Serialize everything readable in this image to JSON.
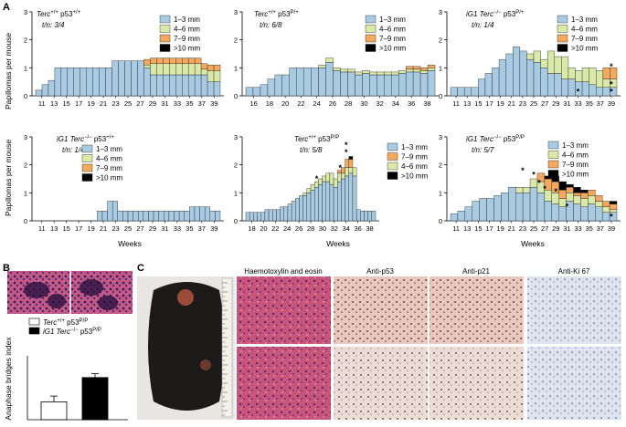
{
  "panel_labels": [
    "A",
    "B",
    "C"
  ],
  "colors": {
    "c13": "#a8cbe3",
    "c46": "#dbe9a8",
    "c79": "#f4a95e",
    "c10": "#000000",
    "edge": "#222222"
  },
  "axis_common": {
    "ylabel": "Papillomas per mouse",
    "xlabel": "Weeks"
  },
  "chart_data": [
    {
      "type": "bar",
      "title_pre": "Terc",
      "title_sup1": "+/+",
      "title_mid": " p53",
      "title_sup2": "+/+",
      "tn": "t/n: 3/4",
      "ylim": [
        0,
        3
      ],
      "yticks": [
        "0",
        "1",
        "2",
        "3"
      ],
      "xticks": [
        "11",
        "13",
        "15",
        "17",
        "19",
        "21",
        "23",
        "25",
        "27",
        "29",
        "31",
        "33",
        "35",
        "37",
        "39"
      ],
      "legend": [
        "1–3 mm",
        "4–6 mm",
        "7–9 mm",
        ">10 mm"
      ],
      "legend_keys": [
        "c13",
        "c46",
        "c79",
        "c10"
      ],
      "stack_keys": [
        "c13",
        "c46",
        "c79",
        "c10"
      ],
      "bars": [
        [
          0.2
        ],
        [
          0.4
        ],
        [
          0.55
        ],
        [
          1.0
        ],
        [
          1.0
        ],
        [
          1.0
        ],
        [
          1.0
        ],
        [
          1.0
        ],
        [
          1.0
        ],
        [
          1.0
        ],
        [
          1.0
        ],
        [
          1.0
        ],
        [
          1.25
        ],
        [
          1.25
        ],
        [
          1.25
        ],
        [
          1.25
        ],
        [
          1.25
        ],
        [
          1.0,
          0.1,
          0.2
        ],
        [
          0.75,
          0.4,
          0.2
        ],
        [
          0.75,
          0.4,
          0.2
        ],
        [
          0.75,
          0.4,
          0.2
        ],
        [
          0.75,
          0.4,
          0.2
        ],
        [
          0.75,
          0.4,
          0.2
        ],
        [
          0.75,
          0.4,
          0.2
        ],
        [
          0.75,
          0.4,
          0.2
        ],
        [
          0.75,
          0.4,
          0.2
        ],
        [
          0.75,
          0.2,
          0.2
        ],
        [
          0.5,
          0.4,
          0.2
        ],
        [
          0.5,
          0.4,
          0.2
        ]
      ],
      "stars": []
    },
    {
      "type": "bar",
      "title_pre": "Terc",
      "title_sup1": "+/+",
      "title_mid": " p53",
      "title_sup2": "P/+",
      "tn": "t/n: 6/8",
      "ylim": [
        0,
        3
      ],
      "yticks": [
        "0",
        "1",
        "2",
        "3"
      ],
      "xticks": [
        "16",
        "18",
        "20",
        "22",
        "24",
        "26",
        "28",
        "30",
        "32",
        "34",
        "36",
        "38"
      ],
      "legend": [
        "1–3 mm",
        "4–6 mm",
        "7–9 mm",
        ">10 mm"
      ],
      "legend_keys": [
        "c13",
        "c46",
        "c79",
        "c10"
      ],
      "stack_keys": [
        "c13",
        "c46",
        "c79",
        "c10"
      ],
      "bars": [
        [
          0.3
        ],
        [
          0.3
        ],
        [
          0.4
        ],
        [
          0.6
        ],
        [
          0.75
        ],
        [
          0.75
        ],
        [
          1.0
        ],
        [
          1.0
        ],
        [
          1.0
        ],
        [
          1.0
        ],
        [
          1.0,
          0.1
        ],
        [
          1.2,
          0.15
        ],
        [
          0.9,
          0.1
        ],
        [
          0.85,
          0.1
        ],
        [
          0.85,
          0.1
        ],
        [
          0.75,
          0.1
        ],
        [
          0.8,
          0.1
        ],
        [
          0.75,
          0.1
        ],
        [
          0.75,
          0.1
        ],
        [
          0.75,
          0.1
        ],
        [
          0.75,
          0.1
        ],
        [
          0.8,
          0.1
        ],
        [
          0.85,
          0.1,
          0.1
        ],
        [
          0.85,
          0.1,
          0.1
        ],
        [
          0.8,
          0.1,
          0.1
        ],
        [
          0.9,
          0.1,
          0.1
        ]
      ],
      "stars": []
    },
    {
      "type": "bar",
      "title_pre": "iG1 Terc",
      "title_sup1": "−/−",
      "title_mid": " p53",
      "title_sup2": "P/+",
      "tn": "t/n: 1/4",
      "ylim": [
        0,
        3
      ],
      "yticks": [
        "0",
        "1",
        "2",
        "3"
      ],
      "xticks": [
        "11",
        "13",
        "15",
        "17",
        "19",
        "21",
        "23",
        "25",
        "27",
        "29",
        "31",
        "33",
        "35",
        "37",
        "39"
      ],
      "legend": [
        "1–3 mm",
        "4–6 mm",
        "7–9 mm",
        ">10 mm"
      ],
      "legend_keys": [
        "c13",
        "c46",
        "c79",
        "c10"
      ],
      "stack_keys": [
        "c13",
        "c46",
        "c79",
        "c10"
      ],
      "bars": [
        [
          0.3
        ],
        [
          0.3
        ],
        [
          0.3
        ],
        [
          0.3
        ],
        [
          0.6
        ],
        [
          0.8
        ],
        [
          1.0
        ],
        [
          1.3
        ],
        [
          1.5
        ],
        [
          1.75
        ],
        [
          1.6
        ],
        [
          1.3,
          0.2
        ],
        [
          1.2,
          0.4
        ],
        [
          1.0,
          0.3
        ],
        [
          0.8,
          0.8
        ],
        [
          0.8,
          0.6
        ],
        [
          0.6,
          0.8
        ],
        [
          0.6,
          0.4
        ],
        [
          0.5,
          0.4
        ],
        [
          0.5,
          0.5
        ],
        [
          0.4,
          0.6
        ],
        [
          0.3,
          0.6
        ],
        [
          0.3,
          0.3,
          0.4
        ],
        [
          0.3,
          0.3,
          0.4
        ]
      ],
      "stars": [
        {
          "x": 39,
          "y": 0.95,
          "n": 1
        },
        {
          "x": 33,
          "y": 0.05,
          "n": 1
        },
        {
          "x": 39,
          "y": 0.05,
          "n": 2
        }
      ]
    },
    {
      "type": "bar",
      "title_pre": "iG1 Terc",
      "title_sup1": "−/−",
      "title_mid": " p53",
      "title_sup2": "+/+",
      "tn": "t/n: 1/4",
      "ylim": [
        0,
        3
      ],
      "yticks": [
        "0",
        "1",
        "2",
        "3"
      ],
      "xticks": [
        "11",
        "13",
        "15",
        "17",
        "19",
        "21",
        "23",
        "25",
        "27",
        "29",
        "31",
        "33",
        "35",
        "37",
        "39"
      ],
      "legend": [
        "1–3 mm",
        "4–6 mm",
        "7–9 mm",
        ">10 mm"
      ],
      "legend_keys": [
        "c13",
        "c46",
        "c79",
        "c10"
      ],
      "stack_keys": [
        "c13",
        "c46",
        "c79",
        "c10"
      ],
      "bars": [
        [
          0
        ],
        [
          0
        ],
        [
          0
        ],
        [
          0
        ],
        [
          0
        ],
        [
          0
        ],
        [
          0
        ],
        [
          0
        ],
        [
          0
        ],
        [
          0
        ],
        [
          0
        ],
        [
          0
        ],
        [
          0.35
        ],
        [
          0.35
        ],
        [
          0.7
        ],
        [
          0.7
        ],
        [
          0.35
        ],
        [
          0.35
        ],
        [
          0.35
        ],
        [
          0.35
        ],
        [
          0.35
        ],
        [
          0.35
        ],
        [
          0.35
        ],
        [
          0.35
        ],
        [
          0.35
        ],
        [
          0.35
        ],
        [
          0.35
        ],
        [
          0.35
        ],
        [
          0.35
        ],
        [
          0.35
        ],
        [
          0.5
        ],
        [
          0.5
        ],
        [
          0.5
        ],
        [
          0.5
        ],
        [
          0.35
        ],
        [
          0.35
        ]
      ],
      "stars": []
    },
    {
      "type": "bar",
      "title_pre": "Terc",
      "title_sup1": "+/+",
      "title_mid": " p53",
      "title_sup2": "P/P",
      "tn": "t/n: 5/8",
      "ylim": [
        0,
        3
      ],
      "yticks": [
        "0",
        "1",
        "2",
        "3"
      ],
      "xticks": [
        "18",
        "20",
        "22",
        "24",
        "26",
        "28",
        "30",
        "32",
        "34",
        "36",
        "38"
      ],
      "legend": [
        "1–3 mm",
        "7–9 mm",
        "4–6 mm",
        ">10 mm"
      ],
      "legend_keys": [
        "c13",
        "c79",
        "c46",
        "c10"
      ],
      "stack_keys": [
        "c13",
        "c46",
        "c79",
        "c10"
      ],
      "bars": [
        [
          0.3
        ],
        [
          0.3
        ],
        [
          0.3
        ],
        [
          0.3
        ],
        [
          0.3
        ],
        [
          0.4
        ],
        [
          0.4
        ],
        [
          0.4
        ],
        [
          0.4
        ],
        [
          0.5
        ],
        [
          0.5
        ],
        [
          0.6
        ],
        [
          0.7
        ],
        [
          0.8
        ],
        [
          0.9
        ],
        [
          0.9,
          0.1
        ],
        [
          1.0,
          0.15
        ],
        [
          1.1,
          0.2
        ],
        [
          1.2,
          0.2
        ],
        [
          1.3,
          0.2
        ],
        [
          1.4,
          0.2
        ],
        [
          1.4,
          0.3
        ],
        [
          1.3,
          0.4
        ],
        [
          1.2,
          0.3
        ],
        [
          1.4,
          0.3,
          0.1
        ],
        [
          1.5,
          0.2,
          0.2
        ],
        [
          1.6,
          0.3,
          0.3
        ],
        [
          1.7,
          0.2,
          0.3,
          0.1
        ],
        [
          1.6,
          0.3
        ],
        [
          0.4
        ],
        [
          0.35
        ],
        [
          0.35
        ],
        [
          0.35
        ],
        [
          0.35
        ]
      ],
      "stars": [
        {
          "x": 29,
          "y": 1.4,
          "n": 1
        },
        {
          "x": 33,
          "y": 1.8,
          "n": 1
        },
        {
          "x": 34,
          "y": 2.35,
          "n": 2
        }
      ]
    },
    {
      "type": "bar",
      "title_pre": "iG1 Terc",
      "title_sup1": "−/−",
      "title_mid": " p53",
      "title_sup2": "P/P",
      "tn": "t/n: 5/7",
      "ylim": [
        0,
        3
      ],
      "yticks": [
        "0",
        "1",
        "2",
        "3"
      ],
      "xticks": [
        "11",
        "13",
        "15",
        "17",
        "19",
        "21",
        "23",
        "25",
        "27",
        "29",
        "31",
        "33",
        "35",
        "37",
        "39"
      ],
      "legend": [
        "1–3 mm",
        "4–6 mm",
        "7–9 mm",
        ">10 mm"
      ],
      "legend_keys": [
        "c13",
        "c46",
        "c79",
        "c10"
      ],
      "stack_keys": [
        "c13",
        "c46",
        "c79",
        "c10"
      ],
      "bars": [
        [
          0.25
        ],
        [
          0.35
        ],
        [
          0.5
        ],
        [
          0.7
        ],
        [
          0.8
        ],
        [
          0.8
        ],
        [
          0.9
        ],
        [
          1.0
        ],
        [
          1.2
        ],
        [
          1.0,
          0.2
        ],
        [
          1.0,
          0.2
        ],
        [
          1.2,
          0.3
        ],
        [
          1.0,
          0.4,
          0.3
        ],
        [
          0.7,
          0.4,
          0.4,
          0.1
        ],
        [
          0.6,
          0.4,
          0.4,
          0.2
        ],
        [
          0.5,
          0.3,
          0.3,
          0.3
        ],
        [
          0.7,
          0.3,
          0.2,
          0.1
        ],
        [
          0.6,
          0.3,
          0.1,
          0.2
        ],
        [
          0.5,
          0.3,
          0.2,
          0.1
        ],
        [
          0.6,
          0.3,
          0.2
        ],
        [
          0.5,
          0.2,
          0.2
        ],
        [
          0.3,
          0.2,
          0.2
        ],
        [
          0.3,
          0.1,
          0.2,
          0.1
        ]
      ],
      "stars": [
        {
          "x": 23,
          "y": 1.7,
          "n": 1
        },
        {
          "x": 25,
          "y": 1.55,
          "n": 1
        },
        {
          "x": 26,
          "y": 1.25,
          "n": 1
        },
        {
          "x": 27,
          "y": 1.05,
          "n": 1
        },
        {
          "x": 29,
          "y": 0.95,
          "n": 1
        },
        {
          "x": 31,
          "y": 0.4,
          "n": 1
        },
        {
          "x": 39,
          "y": 0.05,
          "n": 1
        }
      ]
    },
    {
      "type": "bar",
      "ylabel": "Anaphase bridges index",
      "ylim": [
        0,
        100
      ],
      "legend": [
        "Terc",
        "iG1 Terc"
      ],
      "legend_sup": [
        "+/+",
        "−/−"
      ],
      "legend_mid": " p53",
      "legend_sup2": [
        "P/P",
        "P/P"
      ],
      "categories": [
        "Terc+/+ p53P/P",
        "iG1 Terc−/− p53P/P"
      ],
      "values": [
        28,
        66
      ],
      "errors": [
        9,
        6
      ],
      "fills": [
        "#ffffff",
        "#000000"
      ]
    }
  ],
  "panel_c": {
    "headers": [
      "Haemotoxylin and eosin",
      "Anti-p53",
      "Anti-p21",
      "Anti-Ki 67"
    ]
  }
}
